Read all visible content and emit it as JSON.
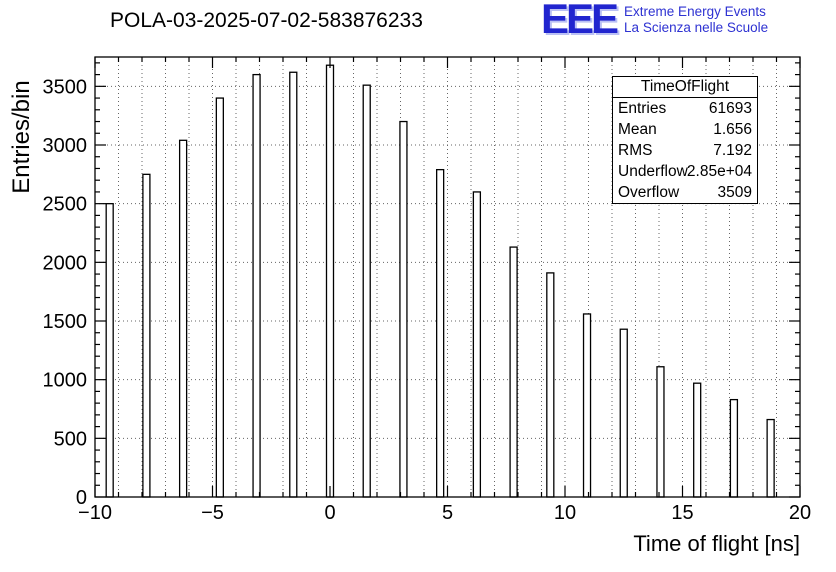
{
  "header": {
    "logo": {
      "eee": "EEE",
      "line1": "Extreme Energy Events",
      "line2": "La Scienza nelle Scuole",
      "color": "#2125cf"
    }
  },
  "stats": {
    "title": "TimeOfFlight",
    "rows": [
      {
        "label": "Entries",
        "value": "61693"
      },
      {
        "label": "Mean",
        "value": "1.656"
      },
      {
        "label": "RMS",
        "value": "7.192"
      },
      {
        "label": "Underflow",
        "value": "2.85e+04"
      },
      {
        "label": "Overflow",
        "value": "3509"
      }
    ]
  },
  "chart_data": {
    "type": "bar",
    "title": "POLA-03-2025-07-02-583876233",
    "xlabel": "Time of flight [ns]",
    "ylabel": "Entries/bin",
    "xlim": [
      -10,
      20
    ],
    "ylim": [
      0,
      3750
    ],
    "x_major_ticks": [
      -10,
      -5,
      0,
      5,
      10,
      15,
      20
    ],
    "x_tick_labels": [
      "−10",
      "−5",
      "0",
      "5",
      "10",
      "15",
      "20"
    ],
    "y_major_ticks": [
      0,
      500,
      1000,
      1500,
      2000,
      2500,
      3000,
      3500
    ],
    "x_minor_step": 1,
    "y_minor_step": 100,
    "grid": true,
    "legend": "none",
    "bin_width_ns": 1.5625,
    "bar_centers": [
      -9.375,
      -7.8125,
      -6.25,
      -4.6875,
      -3.125,
      -1.5625,
      0,
      1.5625,
      3.125,
      4.6875,
      6.25,
      7.8125,
      9.375,
      10.9375,
      12.5,
      14.0625,
      15.625,
      17.1875,
      18.75
    ],
    "values": [
      2500,
      2750,
      3040,
      3400,
      3600,
      3620,
      3680,
      3510,
      3200,
      2790,
      2600,
      2130,
      1910,
      1560,
      1430,
      1110,
      970,
      830,
      660
    ]
  }
}
